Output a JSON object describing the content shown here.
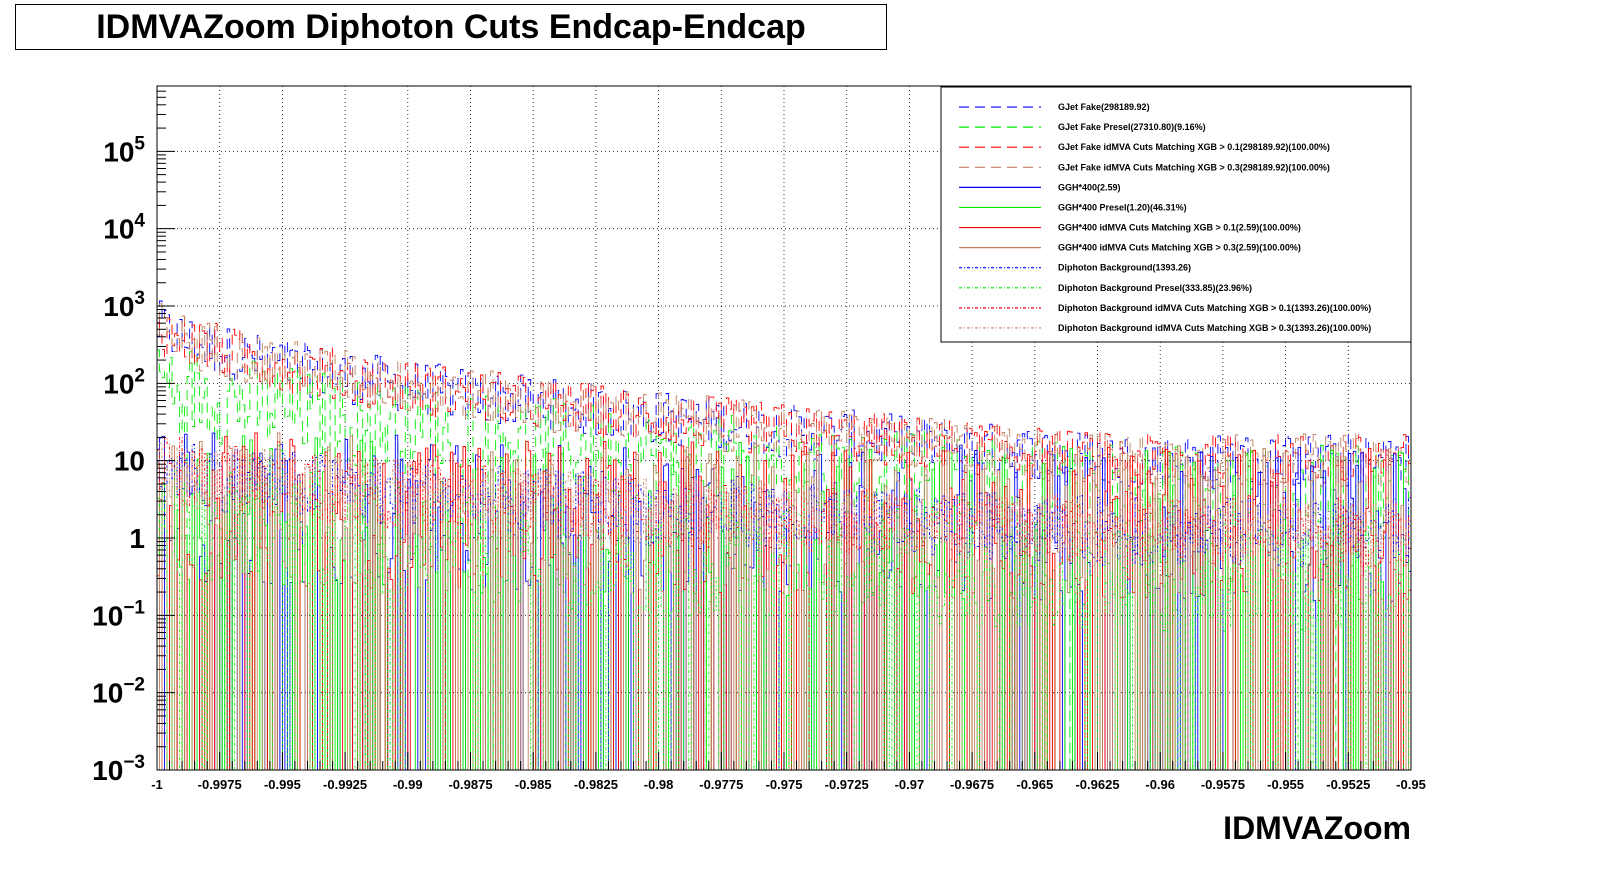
{
  "title": "IDMVAZoom Diphoton Cuts Endcap-Endcap",
  "chart_data": {
    "type": "histogram",
    "title": "IDMVAZoom Diphoton Cuts Endcap-Endcap",
    "xlabel": "IDMVAZoom",
    "ylabel": "",
    "xlim": [
      -1.0,
      -0.95
    ],
    "ylim": [
      0.001,
      700000
    ],
    "log_y": true,
    "grid": true,
    "x_ticks": [
      "-1",
      "-0.9975",
      "-0.995",
      "-0.9925",
      "-0.99",
      "-0.9875",
      "-0.985",
      "-0.9825",
      "-0.98",
      "-0.9775",
      "-0.975",
      "-0.9725",
      "-0.97",
      "-0.9675",
      "-0.965",
      "-0.9625",
      "-0.96",
      "-0.9575",
      "-0.955",
      "-0.9525",
      "-0.95"
    ],
    "y_ticks": [
      {
        "base": "10",
        "exp": "-3",
        "value": 0.001
      },
      {
        "base": "10",
        "exp": "-2",
        "value": 0.01
      },
      {
        "base": "10",
        "exp": "-1",
        "value": 0.1
      },
      {
        "base": "1",
        "exp": "",
        "value": 1
      },
      {
        "base": "10",
        "exp": "",
        "value": 10
      },
      {
        "base": "10",
        "exp": "2",
        "value": 100
      },
      {
        "base": "10",
        "exp": "3",
        "value": 1000
      },
      {
        "base": "10",
        "exp": "4",
        "value": 10000
      },
      {
        "base": "10",
        "exp": "5",
        "value": 100000
      }
    ],
    "legend_position": "top-right",
    "series": [
      {
        "name": "GJet Fake(298189.92)",
        "color": "#0000ff",
        "style": "long-dash",
        "level_start": 700,
        "level_end": 10,
        "noise": 0.35,
        "zero_prob": 0.0
      },
      {
        "name": "GJet Fake Presel(27310.80)(9.16%)",
        "color": "#00ee00",
        "style": "long-dash",
        "level_start": 150,
        "level_end": 4,
        "noise": 0.6,
        "zero_prob": 0.04
      },
      {
        "name": "GJet Fake idMVA Cuts Matching XGB > 0.1(298189.92)(100.00%)",
        "color": "#ff0000",
        "style": "long-dash",
        "level_start": 700,
        "level_end": 10,
        "noise": 0.35,
        "zero_prob": 0.0
      },
      {
        "name": "GJet Fake idMVA Cuts Matching XGB > 0.3(298189.92)(100.00%)",
        "color": "#c08060",
        "style": "long-dash",
        "level_start": 700,
        "level_end": 10,
        "noise": 0.35,
        "zero_prob": 0.0
      },
      {
        "name": "GGH*400(2.59)",
        "color": "#0000ff",
        "style": "solid",
        "level_start": 3,
        "level_end": 1.5,
        "noise": 1.0,
        "zero_prob": 0.35
      },
      {
        "name": "GGH*400 Presel(1.20)(46.31%)",
        "color": "#00ee00",
        "style": "solid",
        "level_start": 3,
        "level_end": 1.5,
        "noise": 1.0,
        "zero_prob": 0.55
      },
      {
        "name": "GGH*400 idMVA Cuts Matching XGB > 0.1(2.59)(100.00%)",
        "color": "#ff0000",
        "style": "solid",
        "level_start": 3,
        "level_end": 1.5,
        "noise": 1.0,
        "zero_prob": 0.35
      },
      {
        "name": "GGH*400 idMVA Cuts Matching XGB > 0.3(2.59)(100.00%)",
        "color": "#c08060",
        "style": "solid",
        "level_start": 3,
        "level_end": 1.5,
        "noise": 1.0,
        "zero_prob": 0.35
      },
      {
        "name": "Diphoton Background(1393.26)",
        "color": "#0000ff",
        "style": "dash-dot",
        "level_start": 10,
        "level_end": 1.2,
        "noise": 0.45,
        "zero_prob": 0.0
      },
      {
        "name": "Diphoton Background Presel(333.85)(23.96%)",
        "color": "#00ee00",
        "style": "dash-dot",
        "level_start": 2,
        "level_end": 0.3,
        "noise": 0.7,
        "zero_prob": 0.25
      },
      {
        "name": "Diphoton Background idMVA Cuts Matching XGB > 0.1(1393.26)(100.00%)",
        "color": "#ff0000",
        "style": "dash-dot",
        "level_start": 10,
        "level_end": 1.2,
        "noise": 0.45,
        "zero_prob": 0.0
      },
      {
        "name": "Diphoton Background idMVA Cuts Matching XGB > 0.3(1393.26)(100.00%)",
        "color": "#c08060",
        "style": "dash-dot",
        "level_start": 10,
        "level_end": 1.2,
        "noise": 0.45,
        "zero_prob": 0.0
      }
    ]
  }
}
